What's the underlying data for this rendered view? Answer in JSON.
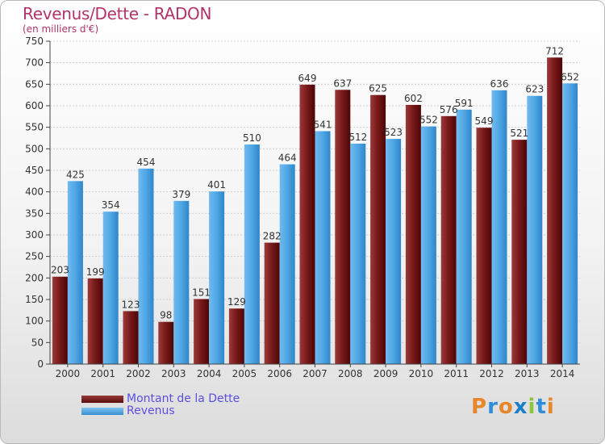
{
  "header": {
    "title": "Revenus/Dette - RADON",
    "subtitle": "(en milliers d'€)"
  },
  "legend": {
    "debt_label": "Montant de la Dette",
    "revenue_label": "Revenus"
  },
  "logo": {
    "text": "Proxiti",
    "letters": [
      "P",
      "r",
      "o",
      "x",
      "i",
      "t",
      "i"
    ],
    "colors": [
      "#e8862a",
      "#2e8fd8",
      "#e8862a",
      "#1a7fc9",
      "#8cc63f",
      "#2e8fd8",
      "#e8862a"
    ]
  },
  "colors": {
    "debt": "#7a1a1a",
    "revenue": "#4fa6e4",
    "title": "#b0336a",
    "legend_text": "#5b4fe0"
  },
  "chart_data": {
    "type": "bar",
    "title": "Revenus/Dette - RADON",
    "subtitle": "(en milliers d'€)",
    "categories": [
      "2000",
      "2001",
      "2002",
      "2003",
      "2004",
      "2005",
      "2006",
      "2007",
      "2008",
      "2009",
      "2010",
      "2011",
      "2012",
      "2013",
      "2014"
    ],
    "series": [
      {
        "name": "Montant de la Dette",
        "values": [
          203,
          199,
          123,
          98,
          151,
          129,
          282,
          649,
          637,
          625,
          602,
          576,
          549,
          521,
          712
        ]
      },
      {
        "name": "Revenus",
        "values": [
          425,
          354,
          454,
          379,
          401,
          510,
          464,
          541,
          512,
          523,
          552,
          591,
          636,
          623,
          652
        ]
      }
    ],
    "ylim": [
      0,
      750
    ],
    "yticks": [
      0,
      50,
      100,
      150,
      200,
      250,
      300,
      350,
      400,
      450,
      500,
      550,
      600,
      650,
      700,
      750
    ],
    "grid": true,
    "legend_position": "bottom-left"
  }
}
